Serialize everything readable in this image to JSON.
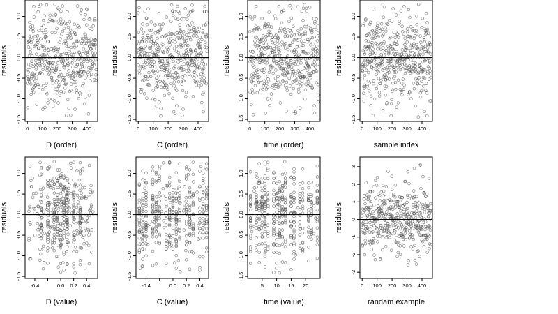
{
  "chart_data": [
    {
      "type": "scatter",
      "xlabel": "D (order)",
      "ylabel": "residuals",
      "xlim": [
        -15,
        470
      ],
      "ylim": [
        -1.55,
        1.4
      ],
      "xticks": [
        0,
        100,
        200,
        300,
        400
      ],
      "xticklabels": [
        "0",
        "100",
        "200",
        "300",
        "400"
      ],
      "yticks": [
        -1.5,
        -1.0,
        -0.5,
        0.0,
        0.5,
        1.0
      ],
      "yticklabels": [
        "-1.5",
        "-1.0",
        "-0.5",
        "0.0",
        "0.5",
        "1.0"
      ],
      "hline": 0,
      "points": {
        "generator": "index",
        "n": 460,
        "x_min": 0,
        "x_max": 460,
        "y_mean": 0,
        "y_sd": 0.55,
        "y_min": -1.45,
        "y_max": 1.3,
        "seed": 11
      }
    },
    {
      "type": "scatter",
      "xlabel": "C (order)",
      "ylabel": "residuals",
      "xlim": [
        -15,
        470
      ],
      "ylim": [
        -1.55,
        1.4
      ],
      "xticks": [
        0,
        100,
        200,
        300,
        400
      ],
      "xticklabels": [
        "0",
        "100",
        "200",
        "300",
        "400"
      ],
      "yticks": [
        -1.5,
        -1.0,
        -0.5,
        0.0,
        0.5,
        1.0
      ],
      "yticklabels": [
        "-1.5",
        "-1.0",
        "-0.5",
        "0.0",
        "0.5",
        "1.0"
      ],
      "hline": 0,
      "points": {
        "generator": "index",
        "n": 460,
        "x_min": 0,
        "x_max": 460,
        "y_mean": 0,
        "y_sd": 0.55,
        "y_min": -1.45,
        "y_max": 1.3,
        "seed": 23
      }
    },
    {
      "type": "scatter",
      "xlabel": "time (order)",
      "ylabel": "residuals",
      "xlim": [
        -15,
        470
      ],
      "ylim": [
        -1.55,
        1.4
      ],
      "xticks": [
        0,
        100,
        200,
        300,
        400
      ],
      "xticklabels": [
        "0",
        "100",
        "200",
        "300",
        "400"
      ],
      "yticks": [
        -1.5,
        -1.0,
        -0.5,
        0.0,
        0.5,
        1.0
      ],
      "yticklabels": [
        "-1.5",
        "-1.0",
        "-0.5",
        "0.0",
        "0.5",
        "1.0"
      ],
      "hline": 0,
      "points": {
        "generator": "index",
        "n": 460,
        "x_min": 0,
        "x_max": 460,
        "y_mean": 0,
        "y_sd": 0.55,
        "y_min": -1.45,
        "y_max": 1.3,
        "seed": 37
      }
    },
    {
      "type": "scatter",
      "xlabel": "sample index",
      "ylabel": "residuals",
      "xlim": [
        -15,
        470
      ],
      "ylim": [
        -1.55,
        1.4
      ],
      "xticks": [
        0,
        100,
        200,
        300,
        400
      ],
      "xticklabels": [
        "0",
        "100",
        "200",
        "300",
        "400"
      ],
      "yticks": [
        -1.5,
        -1.0,
        -0.5,
        0.0,
        0.5,
        1.0
      ],
      "yticklabels": [
        "-1.5",
        "-1.0",
        "-0.5",
        "0.0",
        "0.5",
        "1.0"
      ],
      "hline": 0,
      "points": {
        "generator": "index",
        "n": 460,
        "x_min": 0,
        "x_max": 460,
        "y_mean": 0,
        "y_sd": 0.55,
        "y_min": -1.45,
        "y_max": 1.3,
        "seed": 41
      }
    },
    {
      "type": "scatter",
      "xlabel": "D (value)",
      "ylabel": "residuals",
      "xlim": [
        -0.55,
        0.57
      ],
      "ylim": [
        -1.55,
        1.4
      ],
      "xticks": [
        -0.4,
        -0.2,
        0.0,
        0.2,
        0.4
      ],
      "xticklabels": [
        "-0.4",
        "",
        "0.0",
        "0.2",
        "0.4"
      ],
      "yticks": [
        -1.5,
        -1.0,
        -0.5,
        0.0,
        0.5,
        1.0
      ],
      "yticklabels": [
        "-1.5",
        "-1.0",
        "-0.5",
        "0.0",
        "0.5",
        "1.0"
      ],
      "hline": 0,
      "points": {
        "generator": "value",
        "n": 460,
        "x_min": -0.5,
        "x_max": 0.5,
        "y_mean": 0,
        "y_sd": 0.55,
        "y_min": -1.45,
        "y_max": 1.3,
        "seed": 53,
        "x_stripes": [
          -0.3,
          -0.2,
          -0.1,
          -0.05,
          0.0,
          0.05,
          0.1,
          0.2,
          0.3
        ],
        "stripe_fraction": 0.45
      }
    },
    {
      "type": "scatter",
      "xlabel": "C (value)",
      "ylabel": "residuals",
      "xlim": [
        -0.55,
        0.53
      ],
      "ylim": [
        -1.55,
        1.4
      ],
      "xticks": [
        -0.4,
        -0.2,
        0.0,
        0.2,
        0.4
      ],
      "xticklabels": [
        "-0.4",
        "",
        "0.0",
        "0.2",
        "0.4"
      ],
      "yticks": [
        -1.5,
        -1.0,
        -0.5,
        0.0,
        0.5,
        1.0
      ],
      "yticklabels": [
        "-1.5",
        "-1.0",
        "-0.5",
        "0.0",
        "0.5",
        "1.0"
      ],
      "hline": 0,
      "points": {
        "generator": "value",
        "n": 460,
        "x_min": -0.5,
        "x_max": 0.5,
        "y_mean": 0,
        "y_sd": 0.55,
        "y_min": -1.45,
        "y_max": 1.3,
        "seed": 67,
        "x_stripes": [
          -0.5,
          -0.45,
          -0.4,
          -0.3,
          -0.25,
          -0.2,
          -0.1,
          -0.05,
          0.0,
          0.05,
          0.1,
          0.2,
          0.25,
          0.3,
          0.4,
          0.45,
          0.5
        ],
        "stripe_fraction": 0.85
      }
    },
    {
      "type": "scatter",
      "xlabel": "time (value)",
      "ylabel": "residuals",
      "xlim": [
        0,
        25
      ],
      "ylim": [
        -1.55,
        1.4
      ],
      "xticks": [
        5,
        10,
        15,
        20
      ],
      "xticklabels": [
        "5",
        "10",
        "15",
        "20"
      ],
      "yticks": [
        -1.5,
        -1.0,
        -0.5,
        0.0,
        0.5,
        1.0
      ],
      "yticklabels": [
        "-1.5",
        "-1.0",
        "-0.5",
        "0.0",
        "0.5",
        "1.0"
      ],
      "hline": 0,
      "points": {
        "generator": "value",
        "n": 460,
        "x_min": 1,
        "x_max": 24,
        "y_mean": 0,
        "y_sd": 0.55,
        "y_min": -1.45,
        "y_max": 1.3,
        "seed": 79,
        "x_stripes": [
          1,
          3,
          4,
          5,
          6,
          7,
          9,
          10,
          11,
          12,
          13,
          15,
          16,
          18,
          19,
          21,
          22,
          24
        ],
        "stripe_fraction": 0.9
      }
    },
    {
      "type": "scatter",
      "xlabel": "randam example",
      "ylabel": "residuals",
      "xlim": [
        -15,
        470
      ],
      "ylim": [
        -3.35,
        3.55
      ],
      "xticks": [
        0,
        100,
        200,
        300,
        400
      ],
      "xticklabels": [
        "0",
        "100",
        "200",
        "300",
        "400"
      ],
      "yticks": [
        -3,
        -2,
        -1,
        0,
        1,
        2,
        3
      ],
      "yticklabels": [
        "-3",
        "-2",
        "-1",
        "0",
        "1",
        "2",
        "3"
      ],
      "hline": 0,
      "points": {
        "generator": "index",
        "n": 460,
        "x_min": 0,
        "x_max": 460,
        "y_mean": 0,
        "y_sd": 1.0,
        "y_min": -3.0,
        "y_max": 3.2,
        "seed": 97
      }
    }
  ]
}
